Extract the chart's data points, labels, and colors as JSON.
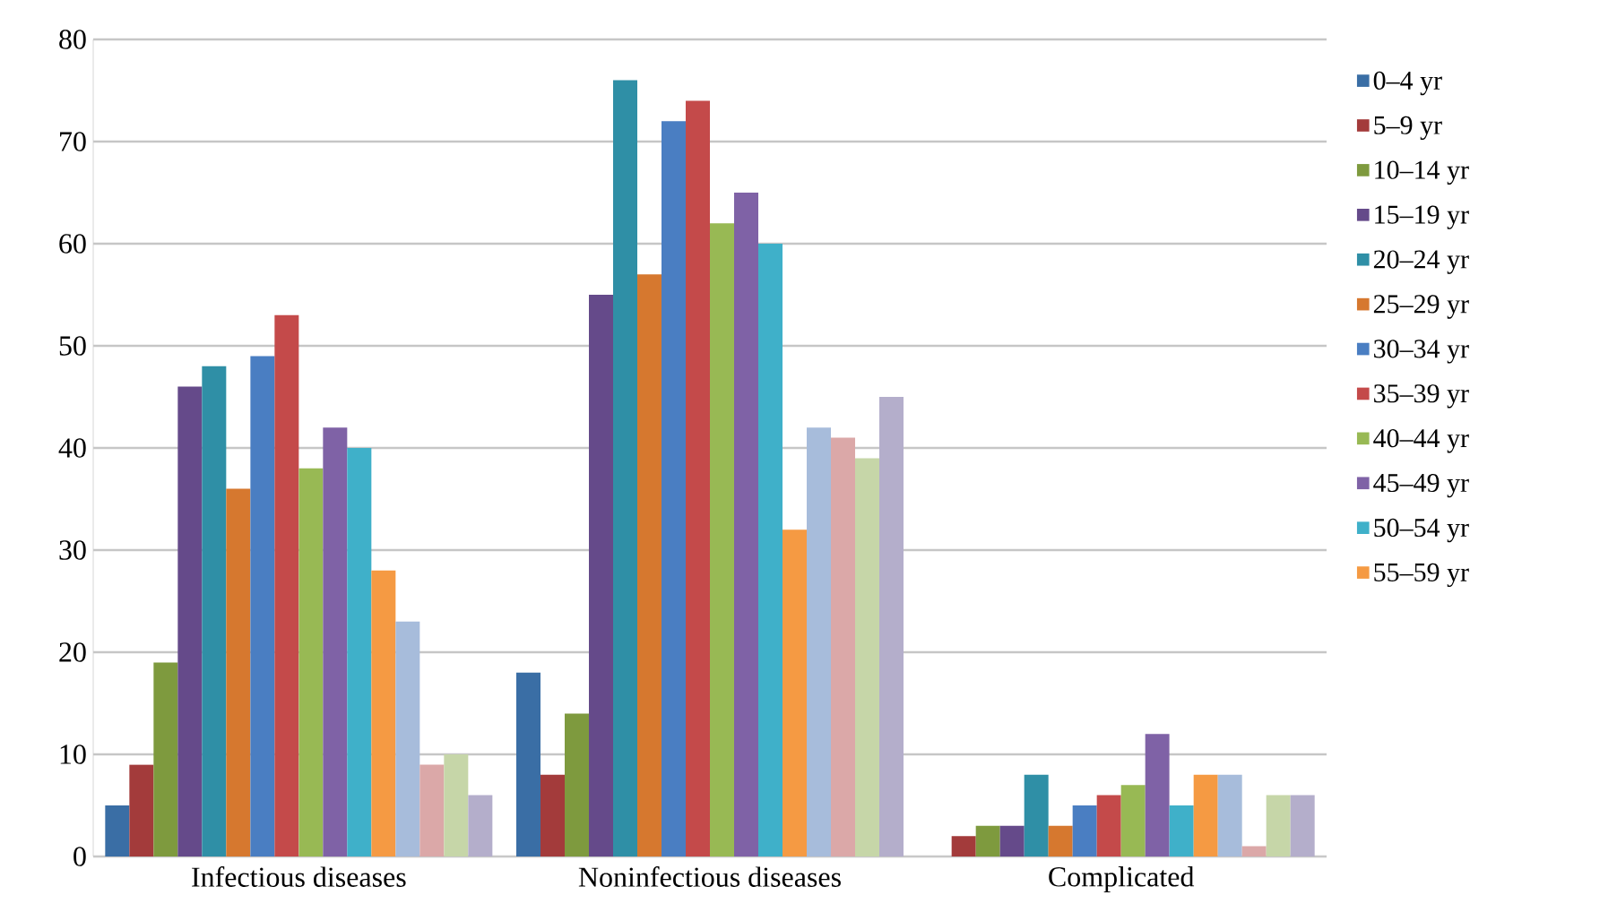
{
  "chart_data": {
    "type": "bar",
    "categories": [
      "Infectious diseases",
      "Noninfectious diseases",
      "Complicated"
    ],
    "series": [
      {
        "name": "0–4 yr",
        "color": "#3a6ea5",
        "values": [
          5,
          18,
          0
        ]
      },
      {
        "name": "5–9 yr",
        "color": "#a33b3b",
        "values": [
          9,
          8,
          2
        ]
      },
      {
        "name": "10–14 yr",
        "color": "#7e9a3e",
        "values": [
          19,
          14,
          3
        ]
      },
      {
        "name": "15–19 yr",
        "color": "#654a8a",
        "values": [
          46,
          55,
          3
        ]
      },
      {
        "name": "20–24 yr",
        "color": "#2f8fa6",
        "values": [
          48,
          76,
          8
        ]
      },
      {
        "name": "25–29 yr",
        "color": "#d6782f",
        "values": [
          36,
          57,
          3
        ]
      },
      {
        "name": "30–34 yr",
        "color": "#4a7ec2",
        "values": [
          49,
          72,
          5
        ]
      },
      {
        "name": "35–39 yr",
        "color": "#c44a4a",
        "values": [
          53,
          74,
          6
        ]
      },
      {
        "name": "40–44 yr",
        "color": "#98b954",
        "values": [
          38,
          62,
          7
        ]
      },
      {
        "name": "45–49 yr",
        "color": "#7f62a6",
        "values": [
          42,
          65,
          12
        ]
      },
      {
        "name": "50–54 yr",
        "color": "#3fb0c9",
        "values": [
          40,
          60,
          5
        ]
      },
      {
        "name": "55–59 yr",
        "color": "#f59a43",
        "values": [
          28,
          32,
          8
        ]
      },
      {
        "color": "#a7bcdb",
        "values": [
          23,
          42,
          8
        ]
      },
      {
        "color": "#dba8a8",
        "values": [
          9,
          41,
          1
        ]
      },
      {
        "color": "#c6d6a8",
        "values": [
          10,
          39,
          6
        ]
      },
      {
        "color": "#b4aecb",
        "values": [
          6,
          45,
          6
        ]
      }
    ],
    "ylim": [
      0,
      80
    ],
    "yticks": [
      0,
      10,
      20,
      30,
      40,
      50,
      60,
      70,
      80
    ],
    "grid": "y",
    "legend": "right"
  }
}
